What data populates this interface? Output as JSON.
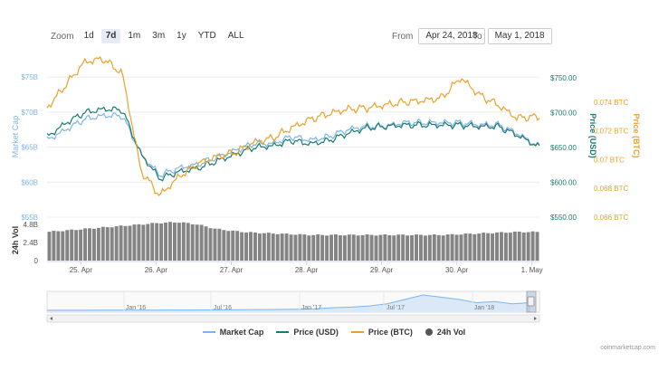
{
  "zoom": {
    "label": "Zoom",
    "buttons": [
      "1d",
      "7d",
      "1m",
      "3m",
      "1y",
      "YTD",
      "ALL"
    ],
    "active": "7d"
  },
  "range": {
    "from_label": "From",
    "from_value": "Apr 24, 2018",
    "to_label": "To",
    "to_value": "May 1, 2018"
  },
  "watermark": "coinmarketcap.com",
  "colors": {
    "market_cap": "#7cb5ec",
    "price_usd": "#1a7a6c",
    "price_btc": "#e9a12a",
    "volume": "#6e6e6e"
  },
  "chart_data": {
    "type": "line",
    "x_ticks": [
      "25. Apr",
      "26. Apr",
      "27. Apr",
      "28. Apr",
      "29. Apr",
      "30. Apr",
      "1. May"
    ],
    "axes": {
      "market_cap": {
        "title": "Market Cap",
        "ticks": [
          "$55B",
          "$60B",
          "$65B",
          "$70B",
          "$75B"
        ],
        "range": [
          55,
          78
        ]
      },
      "price_usd": {
        "title": "Price (USD)",
        "ticks": [
          "$550.00",
          "$600.00",
          "$650.00",
          "$700.00",
          "$750.00"
        ],
        "range": [
          550,
          781
        ]
      },
      "price_btc": {
        "title": "Price (BTC)",
        "ticks": [
          "0.066 BTC",
          "0.068 BTC",
          "0.07 BTC",
          "0.072 BTC",
          "0.074 BTC"
        ],
        "range": [
          0.066,
          0.0772
        ]
      },
      "volume": {
        "title": "24h Vol",
        "ticks": [
          "0",
          "2.4B",
          "4.8B"
        ]
      }
    },
    "x": [
      0,
      0.25,
      0.5,
      0.75,
      1,
      1.25,
      1.5,
      1.75,
      2,
      2.25,
      2.5,
      2.75,
      3,
      3.25,
      3.5,
      3.75,
      4,
      4.25,
      4.5,
      4.75,
      5,
      5.25,
      5.5,
      5.75,
      6,
      6.25,
      6.55
    ],
    "series": [
      {
        "name": "Market Cap",
        "axis": "market_cap",
        "unit": "$B",
        "values": [
          66,
          67.5,
          69,
          69.5,
          69.5,
          64,
          61,
          62,
          62.5,
          63.5,
          64.5,
          65.5,
          65.5,
          66.5,
          66,
          66.5,
          67.5,
          68,
          68,
          68.5,
          68.5,
          68.5,
          68.5,
          68.2,
          68.2,
          67,
          65
        ]
      },
      {
        "name": "Price (USD)",
        "axis": "price_usd",
        "unit": "USD",
        "values": [
          665,
          685,
          700,
          705,
          704,
          640,
          605,
          615,
          620,
          630,
          640,
          650,
          652,
          660,
          655,
          660,
          670,
          678,
          680,
          682,
          682,
          682,
          682,
          680,
          680,
          668,
          650
        ]
      },
      {
        "name": "Price (BTC)",
        "axis": "price_btc",
        "unit": "BTC",
        "values": [
          0.0736,
          0.0752,
          0.0768,
          0.077,
          0.076,
          0.0692,
          0.0675,
          0.0688,
          0.0697,
          0.0702,
          0.0705,
          0.0712,
          0.0715,
          0.0722,
          0.0728,
          0.0732,
          0.0735,
          0.0736,
          0.0738,
          0.074,
          0.0741,
          0.0743,
          0.0757,
          0.0745,
          0.0738,
          0.0729,
          0.073
        ]
      },
      {
        "name": "24h Vol",
        "axis": "volume",
        "unit": "B",
        "values": [
          3.8,
          4.0,
          4.2,
          4.4,
          4.6,
          4.8,
          5.0,
          5.1,
          4.8,
          4.2,
          3.9,
          3.7,
          3.6,
          3.5,
          3.4,
          3.4,
          3.4,
          3.4,
          3.4,
          3.4,
          3.4,
          3.4,
          3.5,
          3.6,
          3.7,
          3.8,
          3.8
        ]
      }
    ],
    "navigator_ticks": [
      "Jan '16",
      "Jul '16",
      "Jan '17",
      "Jul '17",
      "Jan '18"
    ],
    "navigator_values": [
      0.1,
      0.1,
      0.1,
      0.15,
      0.15,
      0.2,
      0.25,
      0.3,
      0.35,
      0.4,
      0.5,
      0.6,
      0.7,
      0.8,
      1.0,
      1.5,
      2.5,
      3.0,
      4.0,
      6.0,
      10.0,
      14.0,
      12.0,
      10.0,
      7.0,
      8.0,
      6.0,
      7.0
    ],
    "legend": [
      "Market Cap",
      "Price (USD)",
      "Price (BTC)",
      "24h Vol"
    ],
    "legend_position": "bottom-center"
  }
}
